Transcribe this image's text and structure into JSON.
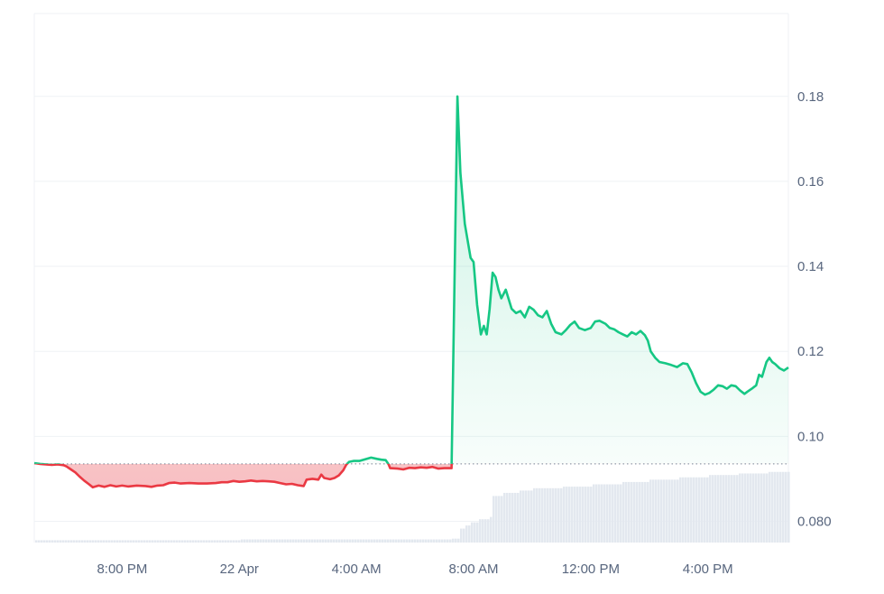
{
  "colors": {
    "up": "#16c784",
    "down": "#ea3943",
    "up_fill": "#16c784",
    "down_fill": "#ea3943",
    "grid": "#eff2f5",
    "baseline": "#58667e",
    "volume": "#e3e8ef",
    "axis_text": "#58667e"
  },
  "chart_data": {
    "type": "area",
    "baseline_value": 0.0935,
    "x_domain": [
      0,
      24.6
    ],
    "x_ticks": [
      {
        "x": 3.0,
        "label": "8:00 PM"
      },
      {
        "x": 7.0,
        "label": "22 Apr"
      },
      {
        "x": 11.0,
        "label": "4:00 AM"
      },
      {
        "x": 15.0,
        "label": "8:00 AM"
      },
      {
        "x": 19.0,
        "label": "12:00 PM"
      },
      {
        "x": 23.0,
        "label": "4:00 PM"
      }
    ],
    "y_range": [
      0.075,
      0.1995
    ],
    "y_ticks": [
      {
        "value": 0.18,
        "label": "0.18"
      },
      {
        "value": 0.16,
        "label": "0.16"
      },
      {
        "value": 0.14,
        "label": "0.14"
      },
      {
        "value": 0.12,
        "label": "0.12"
      },
      {
        "value": 0.1,
        "label": "0.10"
      },
      {
        "value": 0.08,
        "label": "0.080"
      }
    ],
    "price": [
      [
        0.0,
        0.0937
      ],
      [
        0.2,
        0.0935
      ],
      [
        0.4,
        0.0934
      ],
      [
        0.6,
        0.0933
      ],
      [
        0.8,
        0.0934
      ],
      [
        1.0,
        0.0932
      ],
      [
        1.1,
        0.0929
      ],
      [
        1.25,
        0.0922
      ],
      [
        1.4,
        0.0915
      ],
      [
        1.55,
        0.0905
      ],
      [
        1.7,
        0.0896
      ],
      [
        1.85,
        0.0888
      ],
      [
        2.0,
        0.088
      ],
      [
        2.2,
        0.0884
      ],
      [
        2.4,
        0.0881
      ],
      [
        2.6,
        0.0885
      ],
      [
        2.8,
        0.0882
      ],
      [
        3.0,
        0.0884
      ],
      [
        3.2,
        0.0882
      ],
      [
        3.5,
        0.0884
      ],
      [
        3.8,
        0.0883
      ],
      [
        4.0,
        0.0881
      ],
      [
        4.2,
        0.0884
      ],
      [
        4.4,
        0.0885
      ],
      [
        4.6,
        0.089
      ],
      [
        4.8,
        0.0891
      ],
      [
        5.0,
        0.0889
      ],
      [
        5.3,
        0.089
      ],
      [
        5.6,
        0.0889
      ],
      [
        5.9,
        0.0889
      ],
      [
        6.2,
        0.089
      ],
      [
        6.4,
        0.0892
      ],
      [
        6.6,
        0.0892
      ],
      [
        6.8,
        0.0895
      ],
      [
        7.0,
        0.0893
      ],
      [
        7.2,
        0.0894
      ],
      [
        7.4,
        0.0896
      ],
      [
        7.6,
        0.0894
      ],
      [
        7.8,
        0.0895
      ],
      [
        8.0,
        0.0894
      ],
      [
        8.2,
        0.0893
      ],
      [
        8.4,
        0.089
      ],
      [
        8.6,
        0.0887
      ],
      [
        8.8,
        0.0888
      ],
      [
        9.0,
        0.0885
      ],
      [
        9.2,
        0.0883
      ],
      [
        9.3,
        0.0898
      ],
      [
        9.5,
        0.09
      ],
      [
        9.7,
        0.0898
      ],
      [
        9.8,
        0.091
      ],
      [
        9.9,
        0.0902
      ],
      [
        10.1,
        0.0899
      ],
      [
        10.25,
        0.0902
      ],
      [
        10.4,
        0.0908
      ],
      [
        10.55,
        0.092
      ],
      [
        10.65,
        0.0933
      ],
      [
        10.75,
        0.094
      ],
      [
        10.9,
        0.0942
      ],
      [
        11.1,
        0.0942
      ],
      [
        11.3,
        0.0946
      ],
      [
        11.5,
        0.095
      ],
      [
        11.7,
        0.0947
      ],
      [
        11.85,
        0.0945
      ],
      [
        12.0,
        0.0944
      ],
      [
        12.1,
        0.0934
      ],
      [
        12.15,
        0.0925
      ],
      [
        12.4,
        0.0924
      ],
      [
        12.6,
        0.0922
      ],
      [
        12.8,
        0.0926
      ],
      [
        13.0,
        0.0925
      ],
      [
        13.2,
        0.0927
      ],
      [
        13.4,
        0.0926
      ],
      [
        13.6,
        0.0928
      ],
      [
        13.8,
        0.0924
      ],
      [
        14.0,
        0.0925
      ],
      [
        14.15,
        0.0925
      ],
      [
        14.25,
        0.0925
      ],
      [
        14.45,
        0.18
      ],
      [
        14.55,
        0.162
      ],
      [
        14.7,
        0.15
      ],
      [
        14.9,
        0.142
      ],
      [
        15.0,
        0.141
      ],
      [
        15.12,
        0.131
      ],
      [
        15.25,
        0.124
      ],
      [
        15.35,
        0.126
      ],
      [
        15.45,
        0.124
      ],
      [
        15.55,
        0.13
      ],
      [
        15.65,
        0.1385
      ],
      [
        15.75,
        0.1375
      ],
      [
        15.85,
        0.1345
      ],
      [
        15.95,
        0.1325
      ],
      [
        16.1,
        0.1345
      ],
      [
        16.3,
        0.13
      ],
      [
        16.45,
        0.129
      ],
      [
        16.6,
        0.1295
      ],
      [
        16.75,
        0.128
      ],
      [
        16.9,
        0.1305
      ],
      [
        17.05,
        0.1298
      ],
      [
        17.2,
        0.1285
      ],
      [
        17.35,
        0.128
      ],
      [
        17.5,
        0.1295
      ],
      [
        17.65,
        0.1265
      ],
      [
        17.8,
        0.1245
      ],
      [
        18.0,
        0.124
      ],
      [
        18.15,
        0.125
      ],
      [
        18.3,
        0.1262
      ],
      [
        18.45,
        0.127
      ],
      [
        18.6,
        0.1255
      ],
      [
        18.8,
        0.125
      ],
      [
        19.0,
        0.1255
      ],
      [
        19.15,
        0.127
      ],
      [
        19.3,
        0.1272
      ],
      [
        19.5,
        0.1265
      ],
      [
        19.65,
        0.1255
      ],
      [
        19.8,
        0.1252
      ],
      [
        19.95,
        0.1245
      ],
      [
        20.1,
        0.124
      ],
      [
        20.25,
        0.1235
      ],
      [
        20.4,
        0.1245
      ],
      [
        20.55,
        0.124
      ],
      [
        20.7,
        0.1248
      ],
      [
        20.85,
        0.1238
      ],
      [
        20.95,
        0.1225
      ],
      [
        21.05,
        0.12
      ],
      [
        21.2,
        0.1185
      ],
      [
        21.35,
        0.1175
      ],
      [
        21.55,
        0.1172
      ],
      [
        21.75,
        0.1168
      ],
      [
        21.95,
        0.1163
      ],
      [
        22.15,
        0.1172
      ],
      [
        22.3,
        0.117
      ],
      [
        22.45,
        0.115
      ],
      [
        22.6,
        0.1125
      ],
      [
        22.75,
        0.1105
      ],
      [
        22.9,
        0.1098
      ],
      [
        23.05,
        0.1102
      ],
      [
        23.2,
        0.111
      ],
      [
        23.35,
        0.112
      ],
      [
        23.5,
        0.1118
      ],
      [
        23.65,
        0.1112
      ],
      [
        23.8,
        0.112
      ],
      [
        23.95,
        0.1118
      ],
      [
        24.1,
        0.1108
      ],
      [
        24.25,
        0.11
      ],
      [
        24.35,
        0.1105
      ],
      [
        24.5,
        0.1112
      ],
      [
        24.65,
        0.112
      ],
      [
        24.75,
        0.1145
      ],
      [
        24.85,
        0.114
      ],
      [
        25.0,
        0.1175
      ],
      [
        25.1,
        0.1185
      ],
      [
        25.2,
        0.1175
      ],
      [
        25.3,
        0.117
      ],
      [
        25.45,
        0.116
      ],
      [
        25.6,
        0.1155
      ],
      [
        25.75,
        0.1162
      ]
    ],
    "volume_levels": [
      [
        0.0,
        0.03
      ],
      [
        3.0,
        0.03
      ],
      [
        7.0,
        0.04
      ],
      [
        10.0,
        0.04
      ],
      [
        14.25,
        0.05
      ],
      [
        14.5,
        0.18
      ],
      [
        14.7,
        0.22
      ],
      [
        14.9,
        0.26
      ],
      [
        15.1,
        0.3
      ],
      [
        15.5,
        0.33
      ],
      [
        15.6,
        0.6
      ],
      [
        16.0,
        0.64
      ],
      [
        16.5,
        0.67
      ],
      [
        17.0,
        0.7
      ],
      [
        18.0,
        0.72
      ],
      [
        19.0,
        0.75
      ],
      [
        20.0,
        0.78
      ],
      [
        21.0,
        0.81
      ],
      [
        22.0,
        0.84
      ],
      [
        23.0,
        0.87
      ],
      [
        24.0,
        0.89
      ],
      [
        25.0,
        0.91
      ],
      [
        25.8,
        0.93
      ]
    ]
  }
}
